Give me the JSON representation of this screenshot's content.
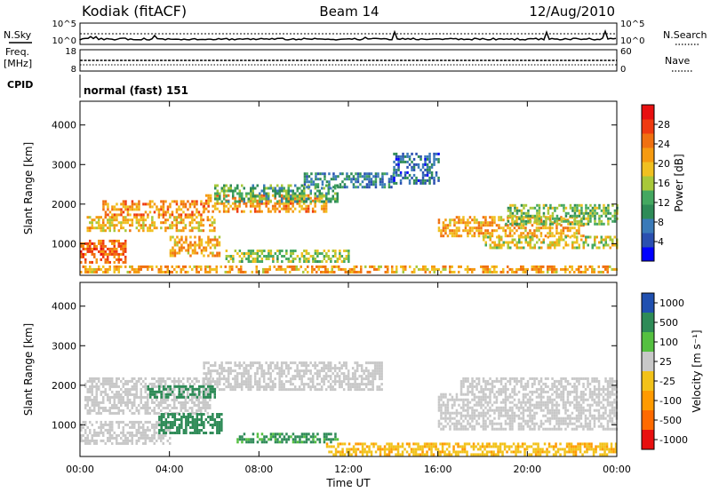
{
  "header": {
    "station": "Kodiak (fitACF)",
    "beam": "Beam 14",
    "date": "12/Aug/2010"
  },
  "sky_panel": {
    "left_label": "N.Sky",
    "right_label": "N.Search",
    "left_ticks": [
      "10^5",
      "10^0"
    ],
    "right_ticks": [
      "10^5",
      "10^0"
    ]
  },
  "freq_panel": {
    "left_label_1": "Freq.",
    "left_label_2": "[MHz]",
    "right_label": "Nave",
    "left_ticks": [
      "18",
      "8"
    ],
    "right_ticks": [
      "60",
      "0"
    ]
  },
  "cpid": {
    "label": "CPID",
    "text": "normal (fast) 151"
  },
  "colors": {
    "power_scale": [
      "#0000ff",
      "#2a4fb0",
      "#3a7ab8",
      "#2e8b57",
      "#44a860",
      "#a8c83a",
      "#f0c020",
      "#f59a10",
      "#f07010",
      "#ef3a10",
      "#e81010"
    ],
    "velocity_scale": [
      "#e81010",
      "#ff6a00",
      "#ff9a00",
      "#f2c21a",
      "#c8c8c8",
      "#55c040",
      "#2e8b57",
      "#2050b0"
    ],
    "ground_scatter": "#c8c8c8"
  },
  "chart_data": [
    {
      "type": "heatmap",
      "quantity": "Power",
      "xlabel": "",
      "ylabel": "Slant Range [km]",
      "colorbar_label": "Power [dB]",
      "colorbar_ticks": [
        "4",
        "8",
        "12",
        "16",
        "20",
        "24",
        "28"
      ],
      "colorbar_range": [
        0,
        32
      ],
      "xlim_hours": [
        0,
        24
      ],
      "ylim_km": [
        200,
        4600
      ],
      "y_ticks": [
        "1000",
        "2000",
        "3000",
        "4000"
      ],
      "regions": [
        {
          "t0": 0.0,
          "t1": 2.0,
          "r0": 500,
          "r1": 1100,
          "power": 26
        },
        {
          "t0": 0.3,
          "t1": 6.0,
          "r0": 1300,
          "r1": 1700,
          "power": 20
        },
        {
          "t0": 1.0,
          "t1": 5.5,
          "r0": 1700,
          "r1": 2100,
          "power": 24
        },
        {
          "t0": 4.0,
          "t1": 6.2,
          "r0": 700,
          "r1": 1200,
          "power": 22
        },
        {
          "t0": 5.5,
          "t1": 11.0,
          "r0": 1800,
          "r1": 2250,
          "power": 23
        },
        {
          "t0": 6.0,
          "t1": 11.5,
          "r0": 2050,
          "r1": 2500,
          "power": 12
        },
        {
          "t0": 10.0,
          "t1": 14.0,
          "r0": 2400,
          "r1": 2800,
          "power": 8
        },
        {
          "t0": 6.5,
          "t1": 12.0,
          "r0": 550,
          "r1": 850,
          "power": 16
        },
        {
          "t0": 0.0,
          "t1": 24.0,
          "r0": 250,
          "r1": 450,
          "power": 22
        },
        {
          "t0": 16.0,
          "t1": 22.5,
          "r0": 1200,
          "r1": 1700,
          "power": 22
        },
        {
          "t0": 18.0,
          "t1": 24.0,
          "r0": 900,
          "r1": 1200,
          "power": 18
        },
        {
          "t0": 19.0,
          "t1": 24.0,
          "r0": 1500,
          "r1": 2000,
          "power": 14
        },
        {
          "t0": 14.0,
          "t1": 16.0,
          "r0": 2500,
          "r1": 3300,
          "power": 6
        }
      ]
    },
    {
      "type": "heatmap",
      "quantity": "Velocity",
      "xlabel": "Time UT",
      "ylabel": "Slant Range [km]",
      "colorbar_label": "Velocity [m s⁻¹]",
      "colorbar_ticks": [
        "1000",
        "500",
        "100",
        "25",
        "-25",
        "-100",
        "-500",
        "-1000"
      ],
      "xlim_hours": [
        0,
        24
      ],
      "ylim_km": [
        200,
        4600
      ],
      "y_ticks": [
        "1000",
        "2000",
        "3000",
        "4000"
      ],
      "x_ticks": [
        "00:00",
        "04:00",
        "08:00",
        "12:00",
        "16:00",
        "20:00",
        "00:00"
      ],
      "regions": [
        {
          "t0": 0.2,
          "t1": 5.8,
          "r0": 1300,
          "r1": 2200,
          "velocity": 0
        },
        {
          "t0": 5.5,
          "t1": 13.5,
          "r0": 1900,
          "r1": 2600,
          "velocity": 0
        },
        {
          "t0": 0.0,
          "t1": 4.0,
          "r0": 500,
          "r1": 1100,
          "velocity": 0
        },
        {
          "t0": 3.0,
          "t1": 6.0,
          "r0": 1700,
          "r1": 2000,
          "velocity": 150
        },
        {
          "t0": 3.5,
          "t1": 6.3,
          "r0": 800,
          "r1": 1300,
          "velocity": 300
        },
        {
          "t0": 7.0,
          "t1": 11.5,
          "r0": 550,
          "r1": 800,
          "velocity": 120
        },
        {
          "t0": 11.0,
          "t1": 24.0,
          "r0": 250,
          "r1": 550,
          "velocity": -80
        },
        {
          "t0": 16.0,
          "t1": 24.0,
          "r0": 900,
          "r1": 1800,
          "velocity": 0
        },
        {
          "t0": 17.0,
          "t1": 24.0,
          "r0": 1800,
          "r1": 2200,
          "velocity": 0
        }
      ]
    }
  ]
}
